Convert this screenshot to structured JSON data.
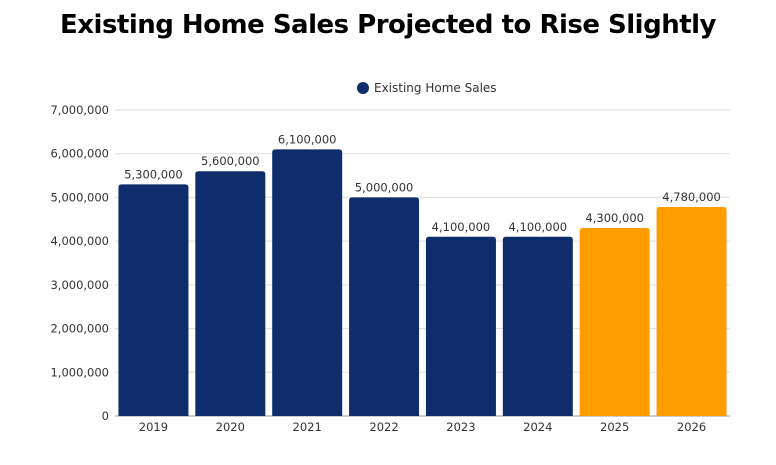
{
  "chart_data": {
    "type": "bar",
    "title": "Existing Home Sales Projected to Rise Slightly",
    "categories": [
      "2019",
      "2020",
      "2021",
      "2022",
      "2023",
      "2024",
      "2025",
      "2026"
    ],
    "series": [
      {
        "name": "Existing Home Sales",
        "values": [
          5300000,
          5600000,
          6100000,
          5000000,
          4100000,
          4100000,
          4300000,
          4780000
        ],
        "data_labels": [
          "5,300,000",
          "5,600,000",
          "6,100,000",
          "5,000,000",
          "4,100,000",
          "4,100,000",
          "4,300,000",
          "4,780,000"
        ]
      }
    ],
    "bar_colors": [
      "#0f2d6b",
      "#0f2d6b",
      "#0f2d6b",
      "#0f2d6b",
      "#0f2d6b",
      "#0f2d6b",
      "#ff9c00",
      "#ff9c00"
    ],
    "legend_color": "#0f2d6b",
    "ylim": [
      0,
      7000000
    ],
    "yticks": [
      0,
      1000000,
      2000000,
      3000000,
      4000000,
      5000000,
      6000000,
      7000000
    ],
    "ytick_labels": [
      "0",
      "1,000,000",
      "2,000,000",
      "3,000,000",
      "4,000,000",
      "5,000,000",
      "6,000,000",
      "7,000,000"
    ],
    "grid": true,
    "legend_position": "top-center",
    "xlabel": "",
    "ylabel": ""
  }
}
